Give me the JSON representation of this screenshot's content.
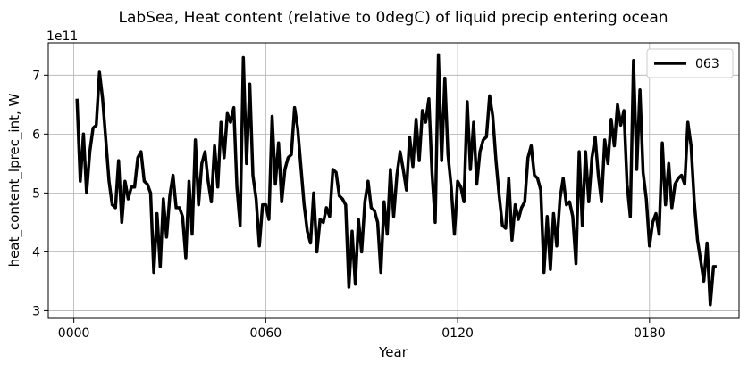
{
  "chart_data": {
    "type": "line",
    "title": "LabSea, Heat content (relative to 0degC) of liquid precip entering ocean",
    "xlabel": "Year",
    "ylabel": "heat_content_lprec_int, W",
    "offset_label": "1e11",
    "xlim": [
      -8,
      208
    ],
    "ylim": [
      2.87,
      7.55
    ],
    "x_ticks": [
      0,
      60,
      120,
      180
    ],
    "x_tick_labels": [
      "0000",
      "0060",
      "0120",
      "0180"
    ],
    "y_ticks": [
      3,
      4,
      5,
      6,
      7
    ],
    "y_tick_labels": [
      "3",
      "4",
      "5",
      "6",
      "7"
    ],
    "grid": true,
    "legend_position": "top-right",
    "series": [
      {
        "name": "063",
        "color": "#000000",
        "x": [
          1,
          2,
          3,
          4,
          5,
          6,
          7,
          8,
          9,
          10,
          11,
          12,
          13,
          14,
          15,
          16,
          17,
          18,
          19,
          20,
          21,
          22,
          23,
          24,
          25,
          26,
          27,
          28,
          29,
          30,
          31,
          32,
          33,
          34,
          35,
          36,
          37,
          38,
          39,
          40,
          41,
          42,
          43,
          44,
          45,
          46,
          47,
          48,
          49,
          50,
          51,
          52,
          53,
          54,
          55,
          56,
          57,
          58,
          59,
          60,
          61,
          62,
          63,
          64,
          65,
          66,
          67,
          68,
          69,
          70,
          71,
          72,
          73,
          74,
          75,
          76,
          77,
          78,
          79,
          80,
          81,
          82,
          83,
          84,
          85,
          86,
          87,
          88,
          89,
          90,
          91,
          92,
          93,
          94,
          95,
          96,
          97,
          98,
          99,
          100,
          101,
          102,
          103,
          104,
          105,
          106,
          107,
          108,
          109,
          110,
          111,
          112,
          113,
          114,
          115,
          116,
          117,
          118,
          119,
          120,
          121,
          122,
          123,
          124,
          125,
          126,
          127,
          128,
          129,
          130,
          131,
          132,
          133,
          134,
          135,
          136,
          137,
          138,
          139,
          140,
          141,
          142,
          143,
          144,
          145,
          146,
          147,
          148,
          149,
          150,
          151,
          152,
          153,
          154,
          155,
          156,
          157,
          158,
          159,
          160,
          161,
          162,
          163,
          164,
          165,
          166,
          167,
          168,
          169,
          170,
          171,
          172,
          173,
          174,
          175,
          176,
          177,
          178,
          179,
          180,
          181,
          182,
          183,
          184,
          185,
          186,
          187,
          188,
          189,
          190,
          191,
          192,
          193,
          194,
          195,
          196,
          197,
          198,
          199,
          200,
          201
        ],
        "values": [
          6.6,
          5.2,
          6.0,
          5.0,
          5.7,
          6.1,
          6.15,
          7.05,
          6.6,
          5.9,
          5.2,
          4.8,
          4.75,
          5.55,
          4.5,
          5.2,
          4.9,
          5.1,
          5.1,
          5.6,
          5.7,
          5.2,
          5.15,
          5.0,
          3.65,
          4.65,
          3.75,
          4.9,
          4.25,
          4.95,
          5.3,
          4.75,
          4.75,
          4.6,
          3.9,
          5.2,
          4.3,
          5.9,
          4.8,
          5.5,
          5.7,
          5.2,
          4.85,
          5.8,
          5.1,
          6.2,
          5.6,
          6.35,
          6.2,
          6.45,
          5.1,
          4.45,
          7.3,
          5.5,
          6.85,
          5.3,
          4.9,
          4.1,
          4.8,
          4.8,
          4.55,
          6.3,
          5.15,
          5.85,
          4.85,
          5.4,
          5.6,
          5.65,
          6.45,
          6.1,
          5.45,
          4.8,
          4.35,
          4.15,
          5.0,
          4.0,
          4.55,
          4.5,
          4.75,
          4.6,
          5.4,
          5.35,
          4.95,
          4.9,
          4.8,
          3.4,
          4.35,
          3.45,
          4.55,
          4.0,
          4.85,
          5.2,
          4.75,
          4.7,
          4.5,
          3.65,
          4.85,
          4.3,
          5.4,
          4.6,
          5.3,
          5.7,
          5.4,
          5.05,
          5.95,
          5.45,
          6.25,
          5.55,
          6.4,
          6.2,
          6.6,
          5.35,
          4.5,
          7.35,
          5.55,
          6.95,
          5.65,
          5.1,
          4.3,
          5.2,
          5.1,
          4.85,
          6.55,
          5.4,
          6.2,
          5.15,
          5.7,
          5.9,
          5.95,
          6.65,
          6.3,
          5.55,
          4.95,
          4.45,
          4.4,
          5.25,
          4.2,
          4.8,
          4.55,
          4.75,
          4.85,
          5.6,
          5.8,
          5.3,
          5.25,
          5.05,
          3.65,
          4.6,
          3.7,
          4.65,
          4.1,
          4.9,
          5.25,
          4.8,
          4.85,
          4.6,
          3.8,
          5.7,
          4.45,
          5.7,
          4.85,
          5.6,
          5.95,
          5.3,
          4.85,
          5.9,
          5.5,
          6.25,
          5.8,
          6.5,
          6.15,
          6.4,
          5.15,
          4.6,
          7.25,
          5.4,
          6.75,
          5.35,
          4.9,
          4.1,
          4.5,
          4.65,
          4.3,
          5.85,
          4.8,
          5.5,
          4.75,
          5.15,
          5.25,
          5.3,
          5.15,
          6.2,
          5.8,
          4.85,
          4.2,
          3.85,
          3.5,
          4.15,
          3.1,
          3.75,
          3.75
        ]
      }
    ]
  }
}
